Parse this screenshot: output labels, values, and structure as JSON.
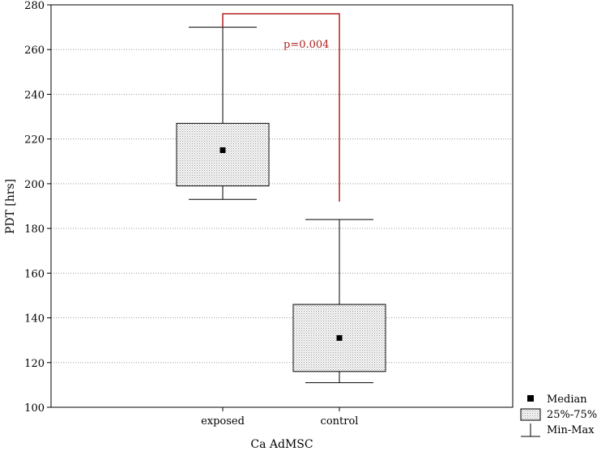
{
  "chart_data": {
    "type": "boxplot",
    "xlabel": "Ca AdMSC",
    "ylabel": "PDT [hrs]",
    "ylim": [
      100,
      280
    ],
    "yticks": [
      100,
      120,
      140,
      160,
      180,
      200,
      220,
      240,
      260,
      280
    ],
    "grid": "horizontal-dotted",
    "categories": [
      "exposed",
      "control"
    ],
    "boxes": [
      {
        "category": "exposed",
        "min": 193,
        "q1": 199,
        "median": 215,
        "q3": 227,
        "max": 270
      },
      {
        "category": "control",
        "min": 111,
        "q1": 116,
        "median": 131,
        "q3": 146,
        "max": 184
      }
    ],
    "annotation": {
      "text": "p=0.004",
      "color": "#b22222",
      "bracket_top": 276,
      "left_end": 270,
      "right_end": 192
    },
    "legend": {
      "placement": "bottom-right",
      "entries": [
        "Median",
        "25%-75%",
        "Min-Max"
      ]
    },
    "colors": {
      "box_pattern": "#8c8c8c",
      "whisker": "#000000",
      "median": "#000000",
      "bracket": "#b22222"
    }
  }
}
